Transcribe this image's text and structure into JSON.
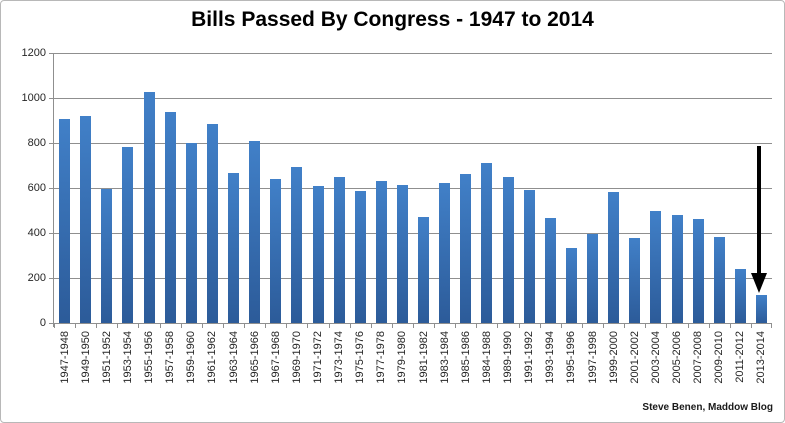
{
  "attribution": "Steve Benen, Maddow Blog",
  "colors": {
    "bar_top": "#4180c8",
    "bar_bottom": "#2c5b99",
    "gridline": "#8f8f8f",
    "axis": "#8f8f8f",
    "arrow": "#000000"
  },
  "chart_data": {
    "type": "bar",
    "title": "Bills Passed By Congress - 1947 to 2014",
    "xlabel": "",
    "ylabel": "",
    "ylim": [
      0,
      1200
    ],
    "ytick_step": 200,
    "grid": true,
    "legend": "none",
    "categories": [
      "1947-1948",
      "1949-1950",
      "1951-1952",
      "1953-1954",
      "1955-1956",
      "1957-1958",
      "1959-1960",
      "1961-1962",
      "1963-1964",
      "1965-1966",
      "1967-1968",
      "1969-1970",
      "1971-1972",
      "1973-1974",
      "1975-1976",
      "1977-1978",
      "1979-1980",
      "1981-1982",
      "1983-1984",
      "1985-1986",
      "1984-1988",
      "1989-1990",
      "1991-1992",
      "1993-1994",
      "1995-1996",
      "1997-1998",
      "1999-2000",
      "2001-2002",
      "2003-2004",
      "2005-2006",
      "2007-2008",
      "2009-2010",
      "2011-2012",
      "2013-2014"
    ],
    "values": [
      906,
      921,
      594,
      781,
      1028,
      936,
      800,
      885,
      666,
      810,
      640,
      695,
      607,
      649,
      588,
      633,
      613,
      473,
      623,
      664,
      713,
      650,
      590,
      465,
      333,
      394,
      580,
      377,
      498,
      482,
      460,
      383,
      238,
      125
    ],
    "annotation": {
      "type": "down-arrow",
      "category": "2013-2014"
    }
  }
}
